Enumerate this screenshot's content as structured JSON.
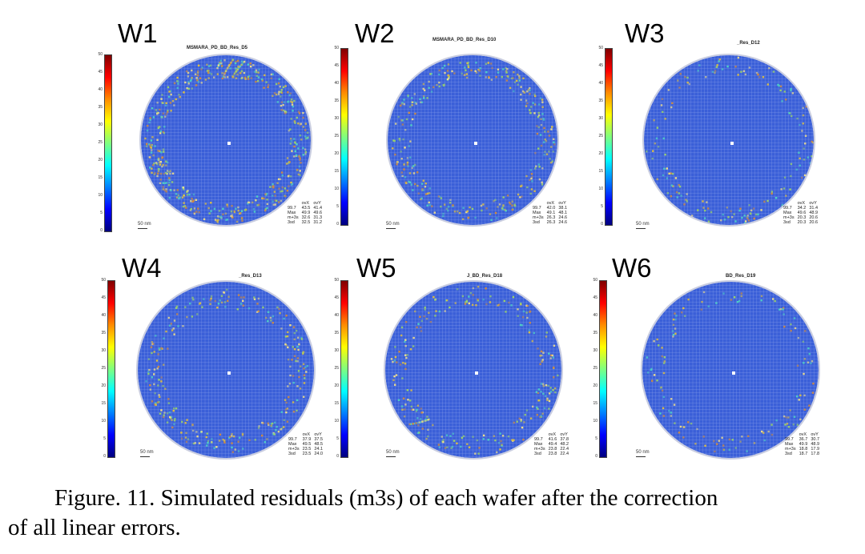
{
  "colorbar": {
    "ticks": [
      "50",
      "45",
      "40",
      "35",
      "30",
      "25",
      "20",
      "15",
      "10",
      "5",
      "0"
    ],
    "colors": [
      "#7f0000",
      "#ff0000",
      "#ff8c00",
      "#ffff00",
      "#7fff7f",
      "#00ffff",
      "#0080ff",
      "#0000ff",
      "#00007f"
    ]
  },
  "grid_color": "#3a5fd8",
  "speckle_colors": [
    "#4fd3c4",
    "#9bd36a",
    "#e0c040",
    "#d08a40",
    "#f2e08a"
  ],
  "stats_header": [
    "",
    "ovX",
    "ovY"
  ],
  "stats_rowlabels": [
    "99.7",
    "Max",
    "m+3s",
    "3sd"
  ],
  "panels": [
    {
      "label": "W1",
      "title": "MSMARA_PD_BD_Res_D5",
      "scale": "50 nm",
      "stats": [
        [
          "43.5",
          "41.4"
        ],
        [
          "49.9",
          "49.6"
        ],
        [
          "32.6",
          "31.3"
        ],
        [
          "32.5",
          "31.2"
        ]
      ],
      "heavy_ring": 0.85,
      "ring_intensity": 0.55
    },
    {
      "label": "W2",
      "title": "MSMARA_PD_BD_Res_D10",
      "scale": "50 nm",
      "stats": [
        [
          "42.0",
          "38.1"
        ],
        [
          "49.1",
          "48.1"
        ],
        [
          "26.3",
          "24.6"
        ],
        [
          "26.3",
          "24.6"
        ]
      ],
      "heavy_ring": 0.85,
      "ring_intensity": 0.35
    },
    {
      "label": "W3",
      "title": "_Res_D12",
      "scale": "50 nm",
      "stats": [
        [
          "34.2",
          "31.4"
        ],
        [
          "49.6",
          "48.9"
        ],
        [
          "20.3",
          "20.6"
        ],
        [
          "20.3",
          "20.6"
        ]
      ],
      "heavy_ring": 0.88,
      "ring_intensity": 0.18
    },
    {
      "label": "W4",
      "title": "_Res_D13",
      "scale": "50 nm",
      "stats": [
        [
          "37.9",
          "37.5"
        ],
        [
          "49.5",
          "48.5"
        ],
        [
          "23.5",
          "24.1"
        ],
        [
          "23.5",
          "24.0"
        ]
      ],
      "heavy_ring": 0.82,
      "ring_intensity": 0.3
    },
    {
      "label": "W5",
      "title": "J_BD_Res_D18",
      "scale": "50 nm",
      "stats": [
        [
          "41.6",
          "37.8"
        ],
        [
          "49.4",
          "48.2"
        ],
        [
          "23.8",
          "22.4"
        ],
        [
          "23.8",
          "22.4"
        ]
      ],
      "heavy_ring": 0.85,
      "ring_intensity": 0.28
    },
    {
      "label": "W6",
      "title": "BD_Res_D19",
      "scale": "50 nm",
      "stats": [
        [
          "36.7",
          "30.7"
        ],
        [
          "49.9",
          "48.9"
        ],
        [
          "18.8",
          "17.9"
        ],
        [
          "18.7",
          "17.8"
        ]
      ],
      "heavy_ring": 0.86,
      "ring_intensity": 0.15
    }
  ],
  "caption": {
    "line1": "Figure. 11. Simulated residuals (m3s) of each wafer after the correction",
    "line2": "of all linear errors."
  }
}
